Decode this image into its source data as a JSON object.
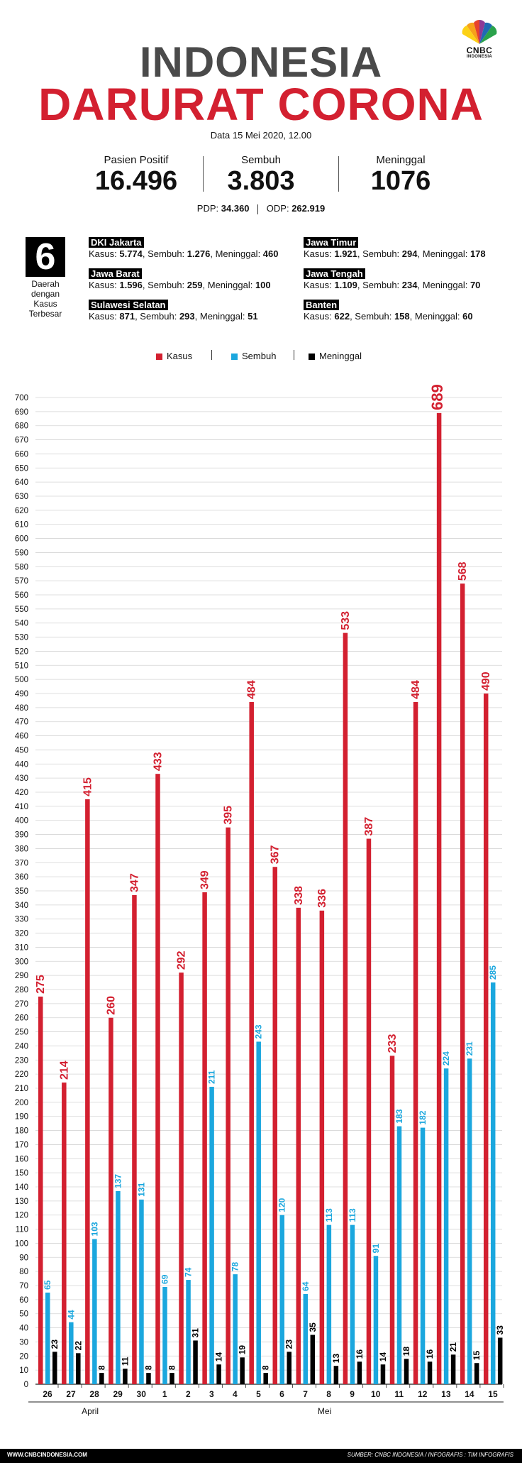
{
  "brand": {
    "logo_text": "CNBC",
    "logo_sub": "INDONESIA"
  },
  "title": {
    "line1": "INDONESIA",
    "line2": "DARURAT CORONA"
  },
  "date": "Data 15 Mei 2020, 12.00",
  "stats": [
    {
      "label": "Pasien Positif",
      "value": "16.496"
    },
    {
      "label": "Sembuh",
      "value": "3.803"
    },
    {
      "label": "Meninggal",
      "value": "1076"
    }
  ],
  "pdp": {
    "pdp_label": "PDP:",
    "pdp_value": "34.360",
    "odp_label": "ODP:",
    "odp_value": "262.919"
  },
  "top_regions": {
    "count": "6",
    "label": "Daerah\ndengan\nKasus\nTerbesar",
    "kasus_label": "Kasus:",
    "sembuh_label": "Sembuh:",
    "meninggal_label": "Meninggal:",
    "items": [
      {
        "name": "DKI Jakarta",
        "kasus": "5.774",
        "sembuh": "1.276",
        "meninggal": "460"
      },
      {
        "name": "Jawa Barat",
        "kasus": "1.596",
        "sembuh": "259",
        "meninggal": "100"
      },
      {
        "name": "Sulawesi Selatan",
        "kasus": "871",
        "sembuh": "293",
        "meninggal": "51"
      },
      {
        "name": "Jawa Timur",
        "kasus": "1.921",
        "sembuh": "294",
        "meninggal": "178"
      },
      {
        "name": "Jawa Tengah",
        "kasus": "1.109",
        "sembuh": "234",
        "meninggal": "70"
      },
      {
        "name": "Banten",
        "kasus": "622",
        "sembuh": "158",
        "meninggal": "60"
      }
    ]
  },
  "colors": {
    "kasus": "#d32030",
    "sembuh": "#1ba7de",
    "meninggal": "#000000",
    "title_gray": "#4a4a4a"
  },
  "chart_data": {
    "type": "bar",
    "categories": [
      "26",
      "27",
      "28",
      "29",
      "30",
      "1",
      "2",
      "3",
      "4",
      "5",
      "6",
      "7",
      "8",
      "9",
      "10",
      "11",
      "12",
      "13",
      "14",
      "15"
    ],
    "month_groups": [
      {
        "label": "April",
        "from": "26",
        "to": "30"
      },
      {
        "label": "Mei",
        "from": "1",
        "to": "15"
      }
    ],
    "series": [
      {
        "name": "Kasus",
        "color": "#d32030",
        "values": [
          275,
          214,
          415,
          260,
          347,
          433,
          292,
          349,
          395,
          484,
          367,
          338,
          336,
          533,
          387,
          233,
          484,
          689,
          568,
          490
        ]
      },
      {
        "name": "Sembuh",
        "color": "#1ba7de",
        "values": [
          65,
          44,
          103,
          137,
          131,
          69,
          74,
          211,
          78,
          243,
          120,
          64,
          113,
          113,
          91,
          183,
          182,
          224,
          231,
          285
        ]
      },
      {
        "name": "Meninggal",
        "color": "#000000",
        "values": [
          23,
          22,
          8,
          11,
          8,
          8,
          31,
          14,
          19,
          8,
          23,
          35,
          13,
          16,
          14,
          18,
          16,
          21,
          15,
          33
        ]
      }
    ],
    "ylim": [
      0,
      700
    ],
    "ytick_step": 10,
    "grid": true,
    "legend_position": "top-center"
  },
  "footer": {
    "left": "WWW.CNBCINDONESIA.COM",
    "right": "SUMBER: CNBC INDONESIA / INFOGRAFIS : TIM INFOGRAFIS"
  }
}
